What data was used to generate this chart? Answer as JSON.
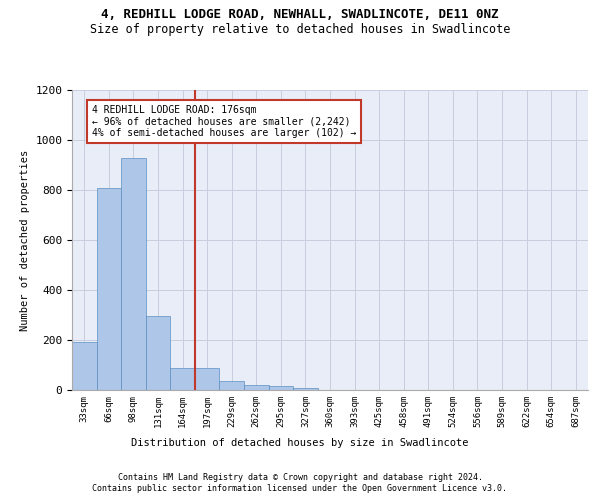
{
  "title1": "4, REDHILL LODGE ROAD, NEWHALL, SWADLINCOTE, DE11 0NZ",
  "title2": "Size of property relative to detached houses in Swadlincote",
  "xlabel": "Distribution of detached houses by size in Swadlincote",
  "ylabel": "Number of detached properties",
  "footer1": "Contains HM Land Registry data © Crown copyright and database right 2024.",
  "footer2": "Contains public sector information licensed under the Open Government Licence v3.0.",
  "bin_labels": [
    "33sqm",
    "66sqm",
    "98sqm",
    "131sqm",
    "164sqm",
    "197sqm",
    "229sqm",
    "262sqm",
    "295sqm",
    "327sqm",
    "360sqm",
    "393sqm",
    "425sqm",
    "458sqm",
    "491sqm",
    "524sqm",
    "556sqm",
    "589sqm",
    "622sqm",
    "654sqm",
    "687sqm"
  ],
  "bar_heights": [
    193,
    810,
    930,
    295,
    88,
    88,
    35,
    20,
    15,
    10,
    0,
    0,
    0,
    0,
    0,
    0,
    0,
    0,
    0,
    0,
    0
  ],
  "bar_color": "#aec6e8",
  "bar_edge_color": "#5a8fc2",
  "vline_index": 4.5,
  "annotation_title": "4 REDHILL LODGE ROAD: 176sqm",
  "annotation_line1": "← 96% of detached houses are smaller (2,242)",
  "annotation_line2": "4% of semi-detached houses are larger (102) →",
  "vline_color": "#c0392b",
  "annotation_box_color": "#ffffff",
  "annotation_box_edge": "#c0392b",
  "ylim": [
    0,
    1200
  ],
  "yticks": [
    0,
    200,
    400,
    600,
    800,
    1000,
    1200
  ],
  "background_color": "#e8edf8",
  "grid_color": "#c8cedd"
}
